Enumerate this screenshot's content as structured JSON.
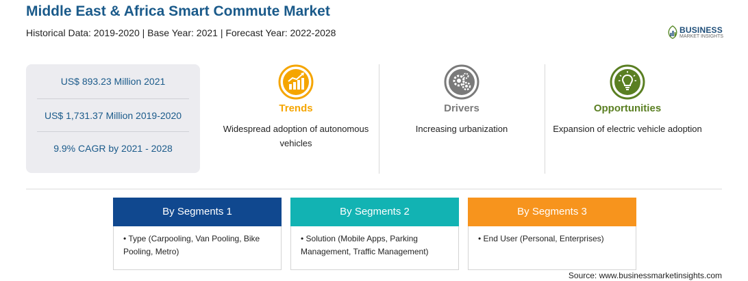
{
  "header": {
    "title": "Middle East & Africa Smart Commute Market",
    "subtitle": "Historical Data: 2019-2020 | Base Year: 2021 | Forecast Year: 2022-2028"
  },
  "logo": {
    "main": "BUSINESS",
    "sub": "MARKET INSIGHTS"
  },
  "stats": [
    "US$ 893.23 Million 2021",
    "US$ 1,731.37 Million 2019-2020",
    "9.9% CAGR by 2021 - 2028"
  ],
  "columns": [
    {
      "title": "Trends",
      "text": "Widespread adoption of autonomous vehicles",
      "color": "#f5a500",
      "icon": "trend-chart-icon"
    },
    {
      "title": "Drivers",
      "text": "Increasing urbanization",
      "color": "#7a7a7a",
      "icon": "gears-icon"
    },
    {
      "title": "Opportunities",
      "text": "Expansion of electric vehicle adoption",
      "color": "#5a7f22",
      "icon": "lightbulb-icon"
    }
  ],
  "segments": [
    {
      "label": "By Segments 1",
      "item": "Type (Carpooling, Van Pooling, Bike Pooling, Metro)",
      "color": "#10488f"
    },
    {
      "label": "By Segments 2",
      "item": "Solution (Mobile Apps, Parking Management, Traffic Management)",
      "color": "#12b3b3"
    },
    {
      "label": "By Segments 3",
      "item": "End User (Personal, Enterprises)",
      "color": "#f7941d"
    }
  ],
  "source": "Source: www.businessmarketinsights.com"
}
